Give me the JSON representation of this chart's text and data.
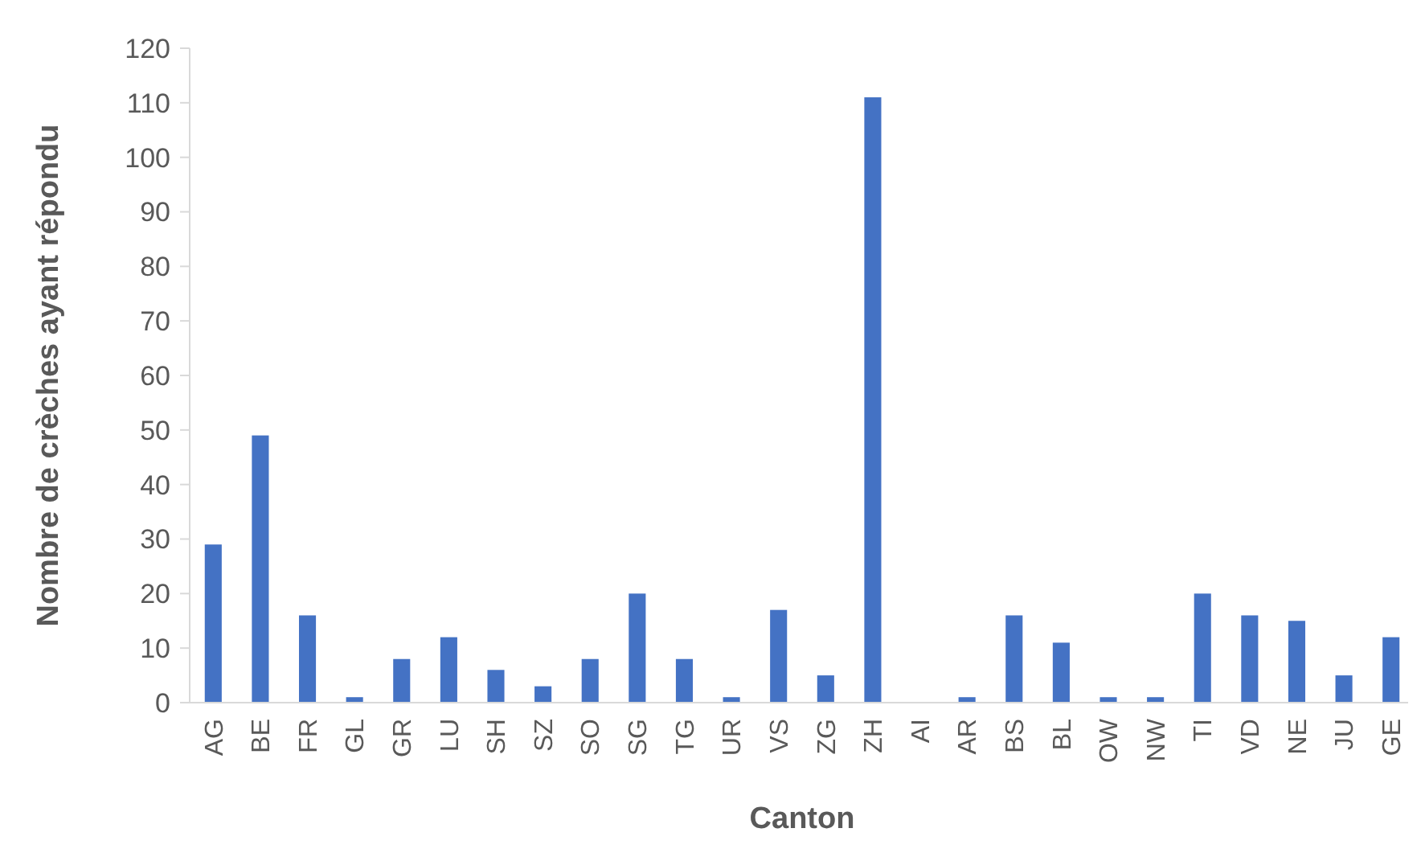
{
  "chart_data": {
    "type": "bar",
    "xlabel": "Canton",
    "ylabel": "Nombre de crèches ayant répondu",
    "categories": [
      "AG",
      "BE",
      "FR",
      "GL",
      "GR",
      "LU",
      "SH",
      "SZ",
      "SO",
      "SG",
      "TG",
      "UR",
      "VS",
      "ZG",
      "ZH",
      "AI",
      "AR",
      "BS",
      "BL",
      "OW",
      "NW",
      "TI",
      "VD",
      "NE",
      "JU",
      "GE"
    ],
    "values": [
      29,
      49,
      16,
      1,
      8,
      12,
      6,
      3,
      8,
      20,
      8,
      1,
      17,
      5,
      111,
      0,
      1,
      16,
      11,
      1,
      1,
      20,
      16,
      15,
      5,
      12
    ],
    "color": "#4472c4",
    "ylim": [
      0,
      120
    ],
    "yticks": [
      0,
      10,
      20,
      30,
      40,
      50,
      60,
      70,
      80,
      90,
      100,
      110,
      120
    ]
  }
}
